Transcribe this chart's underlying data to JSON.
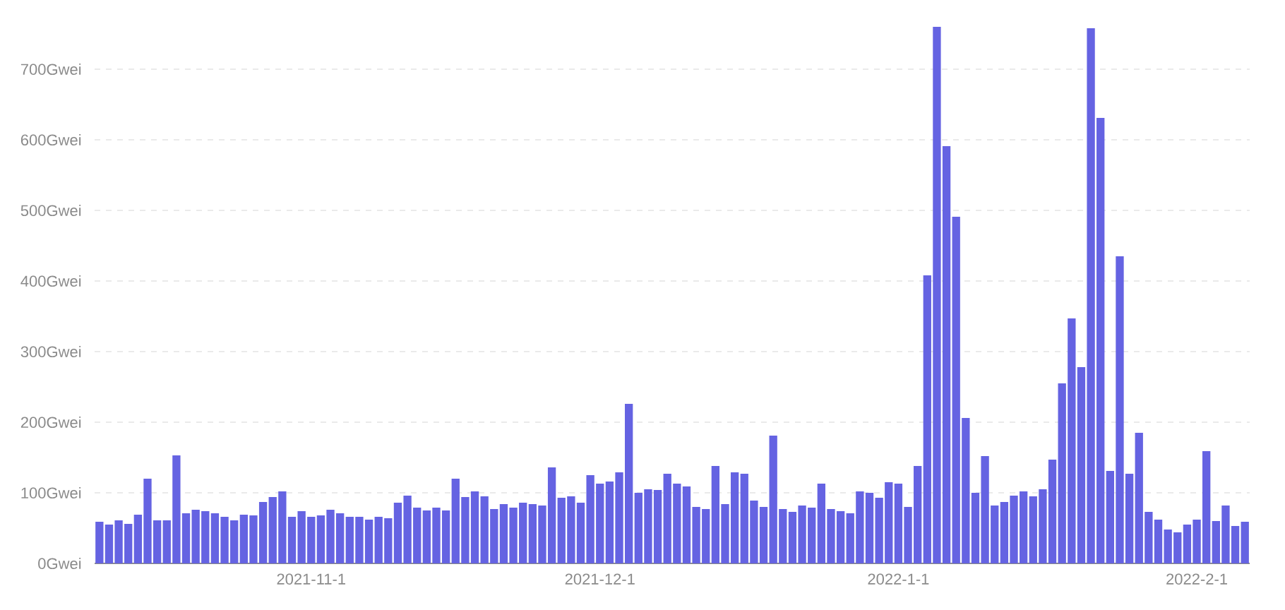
{
  "chart_data": {
    "type": "bar",
    "color": "#6563e2",
    "grid": "y",
    "x": [
      "2021-10-10",
      "2021-10-11",
      "2021-10-12",
      "2021-10-13",
      "2021-10-14",
      "2021-10-15",
      "2021-10-16",
      "2021-10-17",
      "2021-10-18",
      "2021-10-19",
      "2021-10-20",
      "2021-10-21",
      "2021-10-22",
      "2021-10-23",
      "2021-10-24",
      "2021-10-25",
      "2021-10-26",
      "2021-10-27",
      "2021-10-28",
      "2021-10-29",
      "2021-10-30",
      "2021-10-31",
      "2021-11-01",
      "2021-11-02",
      "2021-11-03",
      "2021-11-04",
      "2021-11-05",
      "2021-11-06",
      "2021-11-07",
      "2021-11-08",
      "2021-11-09",
      "2021-11-10",
      "2021-11-11",
      "2021-11-12",
      "2021-11-13",
      "2021-11-14",
      "2021-11-15",
      "2021-11-16",
      "2021-11-17",
      "2021-11-18",
      "2021-11-19",
      "2021-11-20",
      "2021-11-21",
      "2021-11-22",
      "2021-11-23",
      "2021-11-24",
      "2021-11-25",
      "2021-11-26",
      "2021-11-27",
      "2021-11-28",
      "2021-11-29",
      "2021-11-30",
      "2021-12-01",
      "2021-12-02",
      "2021-12-03",
      "2021-12-04",
      "2021-12-05",
      "2021-12-06",
      "2021-12-07",
      "2021-12-08",
      "2021-12-09",
      "2021-12-10",
      "2021-12-11",
      "2021-12-12",
      "2021-12-13",
      "2021-12-14",
      "2021-12-15",
      "2021-12-16",
      "2021-12-17",
      "2021-12-18",
      "2021-12-19",
      "2021-12-20",
      "2021-12-21",
      "2021-12-22",
      "2021-12-23",
      "2021-12-24",
      "2021-12-25",
      "2021-12-26",
      "2021-12-27",
      "2021-12-28",
      "2021-12-29",
      "2021-12-30",
      "2021-12-31",
      "2022-01-01",
      "2022-01-02",
      "2022-01-03",
      "2022-01-04",
      "2022-01-05",
      "2022-01-06",
      "2022-01-07",
      "2022-01-08",
      "2022-01-09",
      "2022-01-10",
      "2022-01-11",
      "2022-01-12",
      "2022-01-13",
      "2022-01-14",
      "2022-01-15",
      "2022-01-16",
      "2022-01-17",
      "2022-01-18",
      "2022-01-19",
      "2022-01-20",
      "2022-01-21",
      "2022-01-22",
      "2022-01-23",
      "2022-01-24",
      "2022-01-25",
      "2022-01-26",
      "2022-01-27",
      "2022-01-28",
      "2022-01-29",
      "2022-01-30",
      "2022-01-31",
      "2022-02-01",
      "2022-02-02",
      "2022-02-03",
      "2022-02-04",
      "2022-02-05",
      "2022-02-06"
    ],
    "values": [
      59,
      55,
      61,
      56,
      69,
      120,
      61,
      61,
      153,
      71,
      76,
      74,
      71,
      66,
      61,
      69,
      68,
      87,
      94,
      102,
      66,
      74,
      66,
      68,
      76,
      71,
      66,
      66,
      62,
      66,
      64,
      86,
      96,
      79,
      75,
      79,
      75,
      120,
      94,
      102,
      95,
      77,
      84,
      79,
      86,
      84,
      82,
      136,
      93,
      95,
      86,
      125,
      113,
      116,
      129,
      226,
      100,
      105,
      104,
      127,
      113,
      109,
      80,
      77,
      138,
      84,
      129,
      127,
      89,
      80,
      181,
      77,
      73,
      82,
      79,
      113,
      77,
      74,
      71,
      102,
      100,
      93,
      115,
      113,
      80,
      138,
      408,
      760,
      591,
      491,
      206,
      100,
      152,
      82,
      87,
      96,
      102,
      95,
      105,
      147,
      255,
      347,
      278,
      758,
      631,
      131,
      435,
      127,
      185,
      73,
      62,
      48,
      44,
      55,
      62,
      159,
      60,
      82,
      53,
      59
    ],
    "xlim": [
      "2021-10-09T12:00",
      "2022-02-06T12:00"
    ],
    "xticks": [
      {
        "value": "2021-11-01",
        "label": "2021-11-1"
      },
      {
        "value": "2021-12-01",
        "label": "2021-12-1"
      },
      {
        "value": "2022-01-01",
        "label": "2022-1-1"
      },
      {
        "value": "2022-02-01",
        "label": "2022-2-1"
      }
    ],
    "ylim": [
      0,
      760
    ],
    "yticks": [
      {
        "value": 0,
        "label": "0Gwei"
      },
      {
        "value": 100,
        "label": "100Gwei"
      },
      {
        "value": 200,
        "label": "200Gwei"
      },
      {
        "value": 300,
        "label": "300Gwei"
      },
      {
        "value": 400,
        "label": "400Gwei"
      },
      {
        "value": 500,
        "label": "500Gwei"
      },
      {
        "value": 600,
        "label": "600Gwei"
      },
      {
        "value": 700,
        "label": "700Gwei"
      }
    ]
  }
}
